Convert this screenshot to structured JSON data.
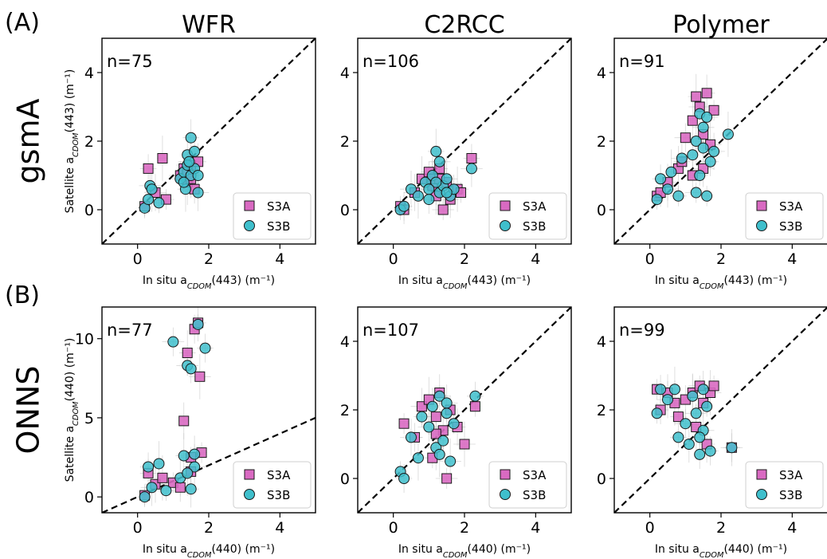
{
  "figure": {
    "col_titles": [
      "WFR",
      "C2RCC",
      "Polymer"
    ],
    "row_letters": [
      "(A)",
      "(B)"
    ],
    "row_titles": [
      "gsmA",
      "ONNS"
    ],
    "legend": [
      "S3A",
      "S3B"
    ],
    "colors": {
      "S3A": "#d96ac2",
      "S3B": "#3fbfcc",
      "edge": "#1a1a1a",
      "err": "#bdbdbd"
    }
  },
  "chart_data": [
    {
      "type": "scatter",
      "name": "gsmA-WFR",
      "n_label": "n=75",
      "xlabel": "In situ a_CDOM(443) (m⁻¹)",
      "ylabel": "Satellite a_CDOM(443) (m⁻¹)",
      "xlim": [
        -1,
        5
      ],
      "ylim": [
        -1,
        5
      ],
      "xticks": [
        0,
        2,
        4
      ],
      "yticks": [
        0,
        2,
        4
      ],
      "one_to_one": true,
      "legend_position": "lower-right",
      "series": [
        {
          "name": "S3A",
          "points": [
            [
              0.2,
              0.1
            ],
            [
              0.3,
              1.2
            ],
            [
              0.5,
              0.5
            ],
            [
              0.7,
              1.5
            ],
            [
              0.8,
              0.3
            ],
            [
              1.2,
              1.0
            ],
            [
              1.3,
              1.2
            ],
            [
              1.4,
              0.8
            ],
            [
              1.5,
              1.3
            ],
            [
              1.6,
              0.6
            ],
            [
              1.7,
              1.4
            ],
            [
              1.4,
              1.1
            ],
            [
              1.5,
              0.9
            ]
          ]
        },
        {
          "name": "S3B",
          "points": [
            [
              0.2,
              0.05
            ],
            [
              0.3,
              0.3
            ],
            [
              0.35,
              0.7
            ],
            [
              0.4,
              0.6
            ],
            [
              0.6,
              0.2
            ],
            [
              1.2,
              0.9
            ],
            [
              1.3,
              1.1
            ],
            [
              1.35,
              0.6
            ],
            [
              1.4,
              1.3
            ],
            [
              1.4,
              1.6
            ],
            [
              1.5,
              2.1
            ],
            [
              1.5,
              1.0
            ],
            [
              1.6,
              1.2
            ],
            [
              1.6,
              1.7
            ],
            [
              1.7,
              0.5
            ],
            [
              1.7,
              1.0
            ],
            [
              1.3,
              0.8
            ],
            [
              1.45,
              1.4
            ]
          ]
        }
      ]
    },
    {
      "type": "scatter",
      "name": "gsmA-C2RCC",
      "n_label": "n=106",
      "xlabel": "In situ a_CDOM(443) (m⁻¹)",
      "ylabel": "",
      "xlim": [
        -1,
        5
      ],
      "ylim": [
        -1,
        5
      ],
      "xticks": [
        0,
        2,
        4
      ],
      "yticks": [
        0,
        2,
        4
      ],
      "one_to_one": true,
      "legend_position": "lower-right",
      "series": [
        {
          "name": "S3A",
          "points": [
            [
              0.2,
              0.1
            ],
            [
              0.3,
              0.0
            ],
            [
              0.6,
              0.5
            ],
            [
              0.8,
              0.9
            ],
            [
              1.0,
              1.1
            ],
            [
              1.1,
              0.7
            ],
            [
              1.2,
              0.4
            ],
            [
              1.3,
              1.2
            ],
            [
              1.4,
              0.0
            ],
            [
              1.5,
              0.8
            ],
            [
              1.6,
              0.3
            ],
            [
              1.8,
              0.6
            ],
            [
              1.9,
              0.5
            ],
            [
              2.2,
              1.5
            ],
            [
              1.1,
              0.9
            ],
            [
              1.3,
              0.9
            ]
          ]
        },
        {
          "name": "S3B",
          "points": [
            [
              0.2,
              0.0
            ],
            [
              0.3,
              0.1
            ],
            [
              0.5,
              0.6
            ],
            [
              0.7,
              0.4
            ],
            [
              0.9,
              0.8
            ],
            [
              1.0,
              0.3
            ],
            [
              1.1,
              1.0
            ],
            [
              1.2,
              1.7
            ],
            [
              1.3,
              1.4
            ],
            [
              1.3,
              0.5
            ],
            [
              1.4,
              0.7
            ],
            [
              1.5,
              0.9
            ],
            [
              1.6,
              0.4
            ],
            [
              1.7,
              0.6
            ],
            [
              2.2,
              1.2
            ],
            [
              1.2,
              0.8
            ],
            [
              1.5,
              0.5
            ],
            [
              1.0,
              0.6
            ]
          ]
        }
      ]
    },
    {
      "type": "scatter",
      "name": "gsmA-Polymer",
      "n_label": "n=91",
      "xlabel": "In situ a_CDOM(443) (m⁻¹)",
      "ylabel": "",
      "xlim": [
        -1,
        5
      ],
      "ylim": [
        -1,
        5
      ],
      "xticks": [
        0,
        2,
        4
      ],
      "yticks": [
        0,
        2,
        4
      ],
      "one_to_one": true,
      "legend_position": "lower-right",
      "series": [
        {
          "name": "S3A",
          "points": [
            [
              0.2,
              0.4
            ],
            [
              0.3,
              0.5
            ],
            [
              0.5,
              0.8
            ],
            [
              0.8,
              1.2
            ],
            [
              0.9,
              1.4
            ],
            [
              1.0,
              2.1
            ],
            [
              1.2,
              2.6
            ],
            [
              1.3,
              3.3
            ],
            [
              1.4,
              3.0
            ],
            [
              1.5,
              2.2
            ],
            [
              1.6,
              3.4
            ],
            [
              1.7,
              1.9
            ],
            [
              1.8,
              2.9
            ],
            [
              1.2,
              1.0
            ],
            [
              1.5,
              1.2
            ]
          ]
        },
        {
          "name": "S3B",
          "points": [
            [
              0.2,
              0.3
            ],
            [
              0.3,
              0.9
            ],
            [
              0.5,
              0.6
            ],
            [
              0.6,
              1.1
            ],
            [
              0.8,
              0.4
            ],
            [
              0.9,
              1.5
            ],
            [
              1.2,
              1.6
            ],
            [
              1.3,
              2.0
            ],
            [
              1.3,
              0.5
            ],
            [
              1.4,
              2.8
            ],
            [
              1.5,
              1.8
            ],
            [
              1.5,
              2.4
            ],
            [
              1.6,
              0.4
            ],
            [
              1.7,
              1.4
            ],
            [
              1.8,
              1.7
            ],
            [
              2.2,
              2.2
            ],
            [
              1.4,
              1.0
            ],
            [
              1.6,
              2.7
            ]
          ]
        }
      ]
    },
    {
      "type": "scatter",
      "name": "ONNS-WFR",
      "n_label": "n=77",
      "xlabel": "In situ a_CDOM(440) (m⁻¹)",
      "ylabel": "Satellite a_CDOM(440) (m⁻¹)",
      "xlim": [
        -1,
        5
      ],
      "ylim": [
        -1,
        12
      ],
      "xticks": [
        0,
        2,
        4
      ],
      "yticks": [
        0,
        5,
        10
      ],
      "one_to_one": true,
      "legend_position": "lower-right",
      "series": [
        {
          "name": "S3A",
          "points": [
            [
              0.2,
              0.1
            ],
            [
              0.3,
              1.5
            ],
            [
              0.5,
              0.8
            ],
            [
              0.7,
              1.2
            ],
            [
              1.0,
              0.9
            ],
            [
              1.2,
              0.6
            ],
            [
              1.3,
              4.8
            ],
            [
              1.4,
              9.1
            ],
            [
              1.5,
              2.5
            ],
            [
              1.6,
              10.6
            ],
            [
              1.7,
              11.0
            ],
            [
              1.75,
              7.6
            ],
            [
              1.8,
              2.8
            ],
            [
              1.5,
              1.6
            ]
          ]
        },
        {
          "name": "S3B",
          "points": [
            [
              0.2,
              0.0
            ],
            [
              0.3,
              1.9
            ],
            [
              0.4,
              0.6
            ],
            [
              0.6,
              2.1
            ],
            [
              0.8,
              0.4
            ],
            [
              1.0,
              9.8
            ],
            [
              1.2,
              1.2
            ],
            [
              1.3,
              2.6
            ],
            [
              1.4,
              8.3
            ],
            [
              1.5,
              8.1
            ],
            [
              1.5,
              0.5
            ],
            [
              1.6,
              1.9
            ],
            [
              1.7,
              10.9
            ],
            [
              1.9,
              9.4
            ],
            [
              1.6,
              2.7
            ],
            [
              1.4,
              1.5
            ]
          ]
        }
      ]
    },
    {
      "type": "scatter",
      "name": "ONNS-C2RCC",
      "n_label": "n=107",
      "xlabel": "In situ a_CDOM(440) (m⁻¹)",
      "ylabel": "",
      "xlim": [
        -1,
        5
      ],
      "ylim": [
        -1,
        5
      ],
      "xticks": [
        0,
        2,
        4
      ],
      "yticks": [
        0,
        2,
        4
      ],
      "one_to_one": true,
      "legend_position": "lower-right",
      "series": [
        {
          "name": "S3A",
          "points": [
            [
              0.3,
              1.6
            ],
            [
              0.6,
              1.2
            ],
            [
              0.8,
              2.1
            ],
            [
              1.0,
              2.3
            ],
            [
              1.1,
              0.6
            ],
            [
              1.2,
              1.8
            ],
            [
              1.3,
              2.5
            ],
            [
              1.4,
              1.4
            ],
            [
              1.5,
              0.0
            ],
            [
              1.6,
              2.0
            ],
            [
              1.8,
              1.5
            ],
            [
              2.0,
              1.0
            ],
            [
              2.3,
              2.1
            ],
            [
              1.2,
              1.3
            ]
          ]
        },
        {
          "name": "S3B",
          "points": [
            [
              0.2,
              0.2
            ],
            [
              0.3,
              0.0
            ],
            [
              0.5,
              1.2
            ],
            [
              0.7,
              0.6
            ],
            [
              0.8,
              1.8
            ],
            [
              1.0,
              1.5
            ],
            [
              1.1,
              2.1
            ],
            [
              1.2,
              0.9
            ],
            [
              1.3,
              2.4
            ],
            [
              1.4,
              1.1
            ],
            [
              1.5,
              1.9
            ],
            [
              1.6,
              0.5
            ],
            [
              1.7,
              1.6
            ],
            [
              2.3,
              2.4
            ],
            [
              1.5,
              2.2
            ],
            [
              1.3,
              0.7
            ]
          ]
        }
      ]
    },
    {
      "type": "scatter",
      "name": "ONNS-Polymer",
      "n_label": "n=99",
      "xlabel": "In situ a_CDOM(440) (m⁻¹)",
      "ylabel": "",
      "xlim": [
        -1,
        5
      ],
      "ylim": [
        -1,
        5
      ],
      "xticks": [
        0,
        2,
        4
      ],
      "yticks": [
        0,
        2,
        4
      ],
      "one_to_one": true,
      "legend_position": "lower-right",
      "series": [
        {
          "name": "S3A",
          "points": [
            [
              0.2,
              2.6
            ],
            [
              0.3,
              2.0
            ],
            [
              0.5,
              2.5
            ],
            [
              0.7,
              2.2
            ],
            [
              0.8,
              1.8
            ],
            [
              1.0,
              2.3
            ],
            [
              1.2,
              2.5
            ],
            [
              1.3,
              1.5
            ],
            [
              1.4,
              2.7
            ],
            [
              1.5,
              2.2
            ],
            [
              1.6,
              1.0
            ],
            [
              1.7,
              2.5
            ],
            [
              1.8,
              2.7
            ],
            [
              2.3,
              0.9
            ]
          ]
        },
        {
          "name": "S3B",
          "points": [
            [
              0.2,
              1.9
            ],
            [
              0.3,
              2.6
            ],
            [
              0.5,
              2.3
            ],
            [
              0.7,
              2.6
            ],
            [
              0.8,
              1.2
            ],
            [
              1.0,
              1.6
            ],
            [
              1.1,
              1.0
            ],
            [
              1.2,
              2.4
            ],
            [
              1.3,
              1.9
            ],
            [
              1.4,
              0.7
            ],
            [
              1.5,
              2.6
            ],
            [
              1.5,
              1.4
            ],
            [
              1.6,
              2.1
            ],
            [
              1.7,
              0.8
            ],
            [
              2.3,
              0.9
            ],
            [
              1.4,
              1.2
            ]
          ]
        }
      ]
    }
  ]
}
